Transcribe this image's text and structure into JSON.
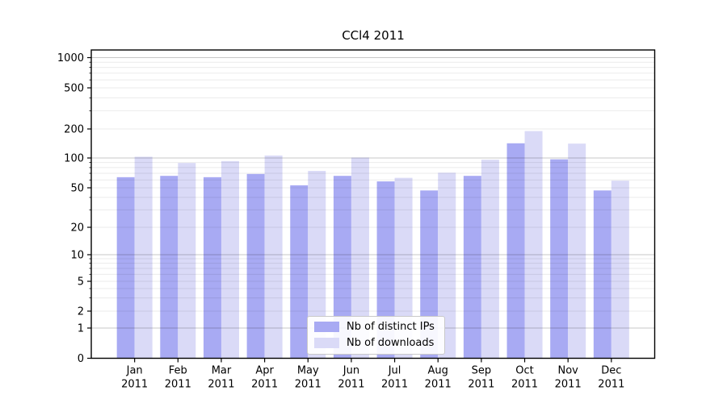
{
  "figure": {
    "title": "CCl4 2011"
  },
  "chart_data": {
    "type": "bar",
    "title": "CCl4 2011",
    "categories": [
      "Jan",
      "Feb",
      "Mar",
      "Apr",
      "May",
      "Jun",
      "Jul",
      "Aug",
      "Sep",
      "Oct",
      "Nov",
      "Dec"
    ],
    "category_year": "2011",
    "series": [
      {
        "name": "Nb of distinct IPs",
        "color": "#a8aaf3",
        "values": [
          64,
          66,
          64,
          69,
          53,
          66,
          58,
          47,
          66,
          142,
          97,
          47
        ]
      },
      {
        "name": "Nb of downloads",
        "color": "#dadaf7",
        "values": [
          103,
          89,
          93,
          106,
          74,
          101,
          63,
          71,
          96,
          190,
          141,
          59
        ]
      }
    ],
    "xlabel": "",
    "ylabel": "",
    "y_ticks": [
      0,
      1,
      2,
      5,
      10,
      20,
      50,
      100,
      200,
      500,
      1000
    ],
    "ylim": [
      0,
      1300
    ],
    "y_scale": "symlog",
    "grid": "horizontal major and minor gridlines",
    "legend_position": "lower center"
  }
}
